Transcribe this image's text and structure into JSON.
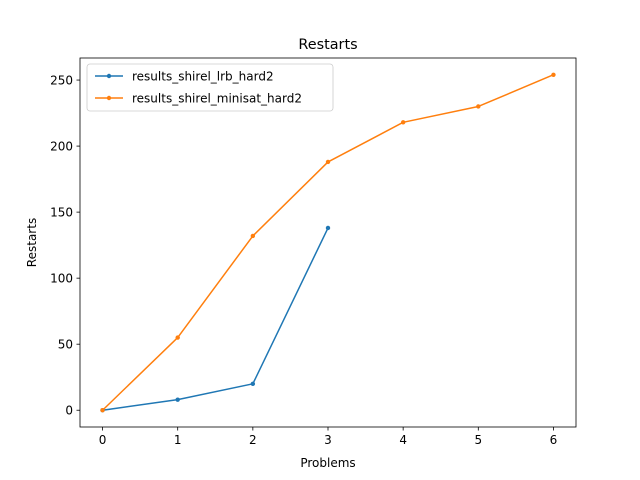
{
  "chart_data": {
    "type": "line",
    "title": "Restarts",
    "xlabel": "Problems",
    "ylabel": "Restarts",
    "xlim": [
      -0.3,
      6.3
    ],
    "ylim": [
      -12.7,
      266.7
    ],
    "xticks": [
      0,
      1,
      2,
      3,
      4,
      5,
      6
    ],
    "yticks": [
      0,
      50,
      100,
      150,
      200,
      250
    ],
    "grid": false,
    "legend_position": "top-left",
    "series": [
      {
        "name": "results_shirel_lrb_hard2",
        "color": "#1f77b4",
        "x": [
          0,
          1,
          2,
          3
        ],
        "y": [
          0,
          8,
          20,
          138
        ]
      },
      {
        "name": "results_shirel_minisat_hard2",
        "color": "#ff7f0e",
        "x": [
          0,
          1,
          2,
          3,
          4,
          5,
          6
        ],
        "y": [
          0,
          55,
          132,
          188,
          218,
          230,
          254
        ]
      }
    ]
  }
}
